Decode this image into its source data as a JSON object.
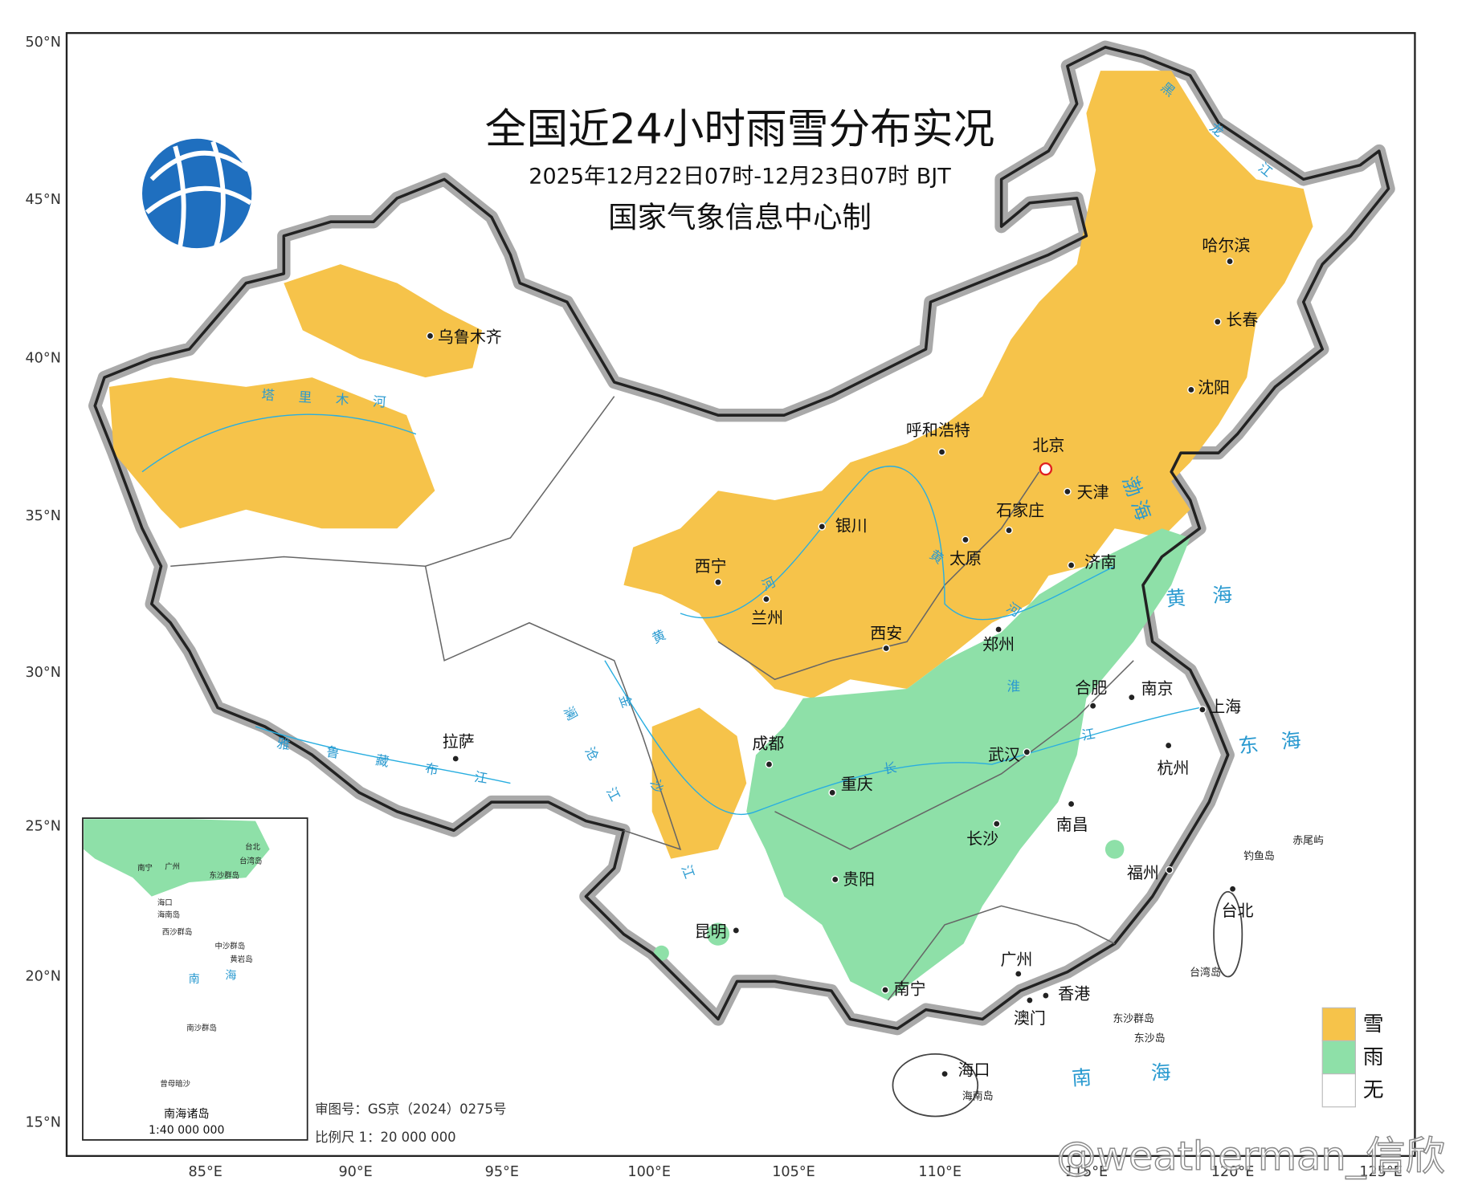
{
  "header": {
    "title": "全国近24小时雨雪分布实况",
    "subtitle": "2025年12月22日07时-12月23日07时 BJT",
    "producer": "国家气象信息中心制"
  },
  "map": {
    "lat_labels": [
      "50°N",
      "45°N",
      "40°N",
      "35°N",
      "30°N",
      "25°N",
      "20°N",
      "15°N"
    ],
    "lon_labels": [
      "85°E",
      "90°E",
      "95°E",
      "100°E",
      "105°E",
      "110°E",
      "115°E",
      "120°E",
      "125°E"
    ],
    "cities": [
      "乌鲁木齐",
      "呼和浩特",
      "北京",
      "天津",
      "石家庄",
      "济南",
      "银川",
      "太原",
      "西宁",
      "兰州",
      "西安",
      "郑州",
      "合肥",
      "南京",
      "上海",
      "杭州",
      "武汉",
      "拉萨",
      "成都",
      "重庆",
      "南昌",
      "长沙",
      "贵阳",
      "福州",
      "昆明",
      "台北",
      "广州",
      "南宁",
      "香港",
      "澳门",
      "海口",
      "哈尔滨",
      "长春",
      "沈阳"
    ],
    "places": [
      "海南岛",
      "台湾岛",
      "东沙群岛",
      "东沙岛",
      "钓鱼岛",
      "赤尾屿"
    ],
    "seas": [
      "渤海",
      "黄海",
      "东海",
      "南海"
    ],
    "rivers": [
      "塔里木河",
      "雅鲁藏布江",
      "黑龙江",
      "澜沧江",
      "金沙江",
      "黄河",
      "黄河",
      "长江",
      "淮"
    ]
  },
  "legend": [
    {
      "label": "雪",
      "color": "#f6c34a"
    },
    {
      "label": "雨",
      "color": "#8ee0a8"
    },
    {
      "label": "无",
      "color": "#ffffff"
    }
  ],
  "inset": {
    "title": "南海诸岛",
    "scale": "1:40 000 000",
    "labels": [
      "南宁",
      "广州",
      "台北",
      "台湾岛",
      "东沙群岛",
      "海口",
      "海南岛",
      "西沙群岛",
      "中沙群岛",
      "黄岩岛",
      "南",
      "海",
      "南沙群岛",
      "曾母暗沙"
    ]
  },
  "footer": {
    "approval": "审图号：GS京（2024）0275号",
    "scale": "比例尺 1：20 000 000"
  },
  "watermark": "@weatherman_信欣"
}
